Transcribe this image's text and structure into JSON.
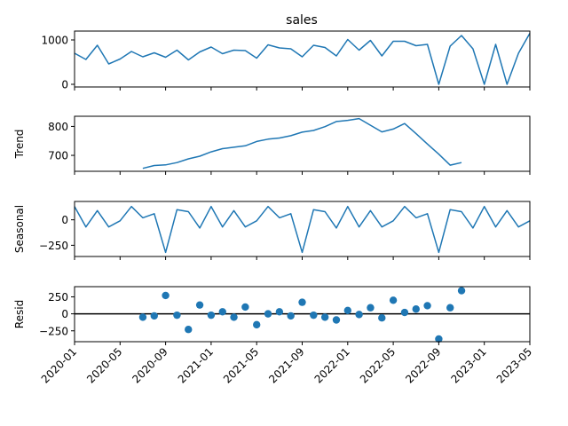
{
  "chart_data": {
    "type": "line",
    "title": "sales",
    "x_ticks": [
      "2020-01",
      "2020-05",
      "2020-09",
      "2021-01",
      "2021-05",
      "2021-09",
      "2022-01",
      "2022-05",
      "2022-09",
      "2023-01",
      "2023-05"
    ],
    "x_dates": [
      "2020-01",
      "2020-02",
      "2020-03",
      "2020-04",
      "2020-05",
      "2020-06",
      "2020-07",
      "2020-08",
      "2020-09",
      "2020-10",
      "2020-11",
      "2020-12",
      "2021-01",
      "2021-02",
      "2021-03",
      "2021-04",
      "2021-05",
      "2021-06",
      "2021-07",
      "2021-08",
      "2021-09",
      "2021-10",
      "2021-11",
      "2021-12",
      "2022-01",
      "2022-02",
      "2022-03",
      "2022-04",
      "2022-05",
      "2022-06",
      "2022-07",
      "2022-08",
      "2022-09",
      "2022-10",
      "2022-11",
      "2022-12",
      "2023-01",
      "2023-02",
      "2023-03",
      "2023-04",
      "2023-05"
    ],
    "color": "#1f77b4",
    "panels": [
      {
        "ylabel": "",
        "kind": "line",
        "ylim": [
          -60,
          1200
        ],
        "yticks": [
          0,
          1000
        ],
        "ytick_labels": [
          "0",
          "1000"
        ],
        "values": [
          700,
          560,
          880,
          460,
          570,
          740,
          620,
          710,
          610,
          770,
          550,
          730,
          840,
          690,
          770,
          760,
          590,
          890,
          820,
          800,
          620,
          880,
          830,
          640,
          1010,
          770,
          990,
          640,
          970,
          970,
          870,
          900,
          0,
          860,
          1100,
          800,
          0,
          900,
          0,
          700,
          1150
        ]
      },
      {
        "ylabel": "Trend",
        "kind": "line",
        "ylim": [
          645,
          835
        ],
        "yticks": [
          700,
          800
        ],
        "ytick_labels": [
          "700",
          "800"
        ],
        "values": [
          null,
          null,
          null,
          null,
          null,
          null,
          655,
          665,
          667,
          675,
          688,
          697,
          712,
          723,
          728,
          733,
          748,
          756,
          760,
          768,
          780,
          786,
          799,
          817,
          821,
          827,
          804,
          781,
          791,
          810,
          775,
          739,
          704,
          666,
          675,
          null,
          null,
          null,
          null,
          null,
          null
        ]
      },
      {
        "ylabel": "Seasonal",
        "kind": "line",
        "ylim": [
          -360,
          180
        ],
        "yticks": [
          0,
          -250
        ],
        "ytick_labels": [
          "0",
          "−250"
        ],
        "values": [
          130,
          -70,
          90,
          -70,
          -10,
          130,
          20,
          60,
          -320,
          100,
          80,
          -80,
          130,
          -70,
          90,
          -70,
          -10,
          130,
          20,
          60,
          -320,
          100,
          80,
          -80,
          130,
          -70,
          90,
          -70,
          -10,
          130,
          20,
          60,
          -320,
          100,
          80,
          -80,
          130,
          -70,
          90,
          -70,
          -10
        ]
      },
      {
        "ylabel": "Resid",
        "kind": "scatter",
        "ylim": [
          -410,
          400
        ],
        "yticks": [
          250,
          0,
          -250
        ],
        "ytick_labels": [
          "250",
          "0",
          "−250"
        ],
        "values": [
          null,
          null,
          null,
          null,
          null,
          null,
          -50,
          -30,
          270,
          -20,
          -230,
          130,
          -20,
          30,
          -50,
          100,
          -160,
          0,
          30,
          -30,
          170,
          -20,
          -50,
          -90,
          50,
          -10,
          90,
          -60,
          200,
          20,
          70,
          120,
          -370,
          90,
          340,
          null,
          null,
          null,
          null,
          null,
          null
        ]
      }
    ]
  }
}
